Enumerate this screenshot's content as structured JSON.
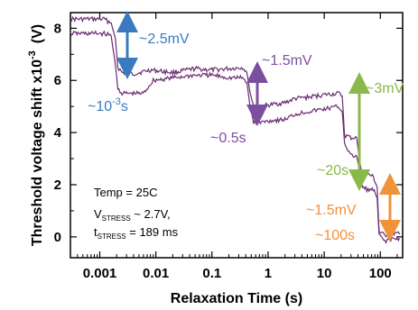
{
  "chart_data": {
    "type": "line",
    "xlabel": "Relaxation Time (s)",
    "ylabel_main": "Threshold voltage shift  x10",
    "ylabel_exp": "-3",
    "ylabel_unit": "(V)",
    "x_scale": "log",
    "xlim": [
      0.0003,
      250
    ],
    "ylim": [
      -0.8,
      8.6
    ],
    "x_ticks": [
      {
        "value": 0.001,
        "label": "0.001"
      },
      {
        "value": 0.01,
        "label": "0.01"
      },
      {
        "value": 0.1,
        "label": "0.1"
      },
      {
        "value": 1,
        "label": "1"
      },
      {
        "value": 10,
        "label": "10"
      },
      {
        "value": 100,
        "label": "100"
      }
    ],
    "y_ticks": [
      {
        "value": 0,
        "label": "0"
      },
      {
        "value": 2,
        "label": "2"
      },
      {
        "value": 4,
        "label": "4"
      },
      {
        "value": 6,
        "label": "6"
      },
      {
        "value": 8,
        "label": "8"
      }
    ],
    "grid": false,
    "series": [
      {
        "color": "#6a2c70",
        "points": [
          [
            0.0003,
            8.35
          ],
          [
            0.0012,
            8.35
          ],
          [
            0.0016,
            8.2
          ],
          [
            0.0019,
            7.6
          ],
          [
            0.0021,
            6.5
          ],
          [
            0.0025,
            6.3
          ],
          [
            0.004,
            6.25
          ],
          [
            0.008,
            6.4
          ],
          [
            0.02,
            6.3
          ],
          [
            0.05,
            6.45
          ],
          [
            0.1,
            6.4
          ],
          [
            0.2,
            6.45
          ],
          [
            0.35,
            6.5
          ],
          [
            0.42,
            6.3
          ],
          [
            0.47,
            5.6
          ],
          [
            0.55,
            5.0
          ],
          [
            0.7,
            5.0
          ],
          [
            1.0,
            5.05
          ],
          [
            2.0,
            5.15
          ],
          [
            3.0,
            5.3
          ],
          [
            5.0,
            5.35
          ],
          [
            10,
            5.45
          ],
          [
            18,
            5.5
          ],
          [
            21,
            5.4
          ],
          [
            23,
            3.9
          ],
          [
            30,
            3.8
          ],
          [
            38,
            3.8
          ],
          [
            42,
            3.0
          ],
          [
            48,
            2.3
          ],
          [
            60,
            2.4
          ],
          [
            75,
            2.3
          ],
          [
            88,
            1.9
          ],
          [
            95,
            0.2
          ],
          [
            120,
            0.05
          ],
          [
            160,
            0.15
          ],
          [
            220,
            0.1
          ]
        ]
      },
      {
        "color": "#6a2c70",
        "points": [
          [
            0.0003,
            7.8
          ],
          [
            0.0012,
            7.8
          ],
          [
            0.0016,
            7.7
          ],
          [
            0.0019,
            6.6
          ],
          [
            0.0021,
            5.7
          ],
          [
            0.0025,
            5.5
          ],
          [
            0.006,
            5.5
          ],
          [
            0.009,
            6.0
          ],
          [
            0.02,
            6.1
          ],
          [
            0.05,
            6.2
          ],
          [
            0.1,
            6.2
          ],
          [
            0.2,
            6.1
          ],
          [
            0.35,
            6.1
          ],
          [
            0.42,
            5.9
          ],
          [
            0.47,
            5.1
          ],
          [
            0.55,
            4.4
          ],
          [
            0.8,
            4.4
          ],
          [
            1.0,
            4.45
          ],
          [
            2.0,
            4.5
          ],
          [
            3.0,
            4.7
          ],
          [
            5.0,
            4.8
          ],
          [
            10,
            4.9
          ],
          [
            18,
            5.0
          ],
          [
            21,
            4.8
          ],
          [
            23,
            3.6
          ],
          [
            30,
            3.1
          ],
          [
            38,
            3.1
          ],
          [
            42,
            2.6
          ],
          [
            48,
            1.9
          ],
          [
            60,
            1.8
          ],
          [
            75,
            1.8
          ],
          [
            88,
            1.5
          ],
          [
            95,
            0.05
          ],
          [
            120,
            -0.15
          ],
          [
            160,
            -0.1
          ],
          [
            220,
            -0.05
          ]
        ]
      }
    ],
    "annotations": {
      "a1": {
        "text": "~2.5mV",
        "color": "#3a7abf"
      },
      "a2": {
        "text": "~10",
        "sup": "-3",
        "suffix": "s",
        "color": "#3a7abf"
      },
      "a3": {
        "text": "~1.5mV",
        "color": "#7b4fa0"
      },
      "a4": {
        "text": "~0.5s",
        "color": "#7b4fa0"
      },
      "a5": {
        "text": "~3mV",
        "color": "#8ab84a"
      },
      "a6": {
        "text": "~20s",
        "color": "#8ab84a"
      },
      "a7": {
        "text": "~1.5mV",
        "color": "#f0923a"
      },
      "a8": {
        "text": "~100s",
        "color": "#f0923a"
      }
    },
    "conditions": {
      "temp": "Temp = 25C",
      "v_main": "V",
      "v_sub": "STRESS",
      "v_rest": " ~ 2.7V,",
      "t_main": "t",
      "t_sub": "STRESS",
      "t_rest": " = 189 ms"
    }
  }
}
